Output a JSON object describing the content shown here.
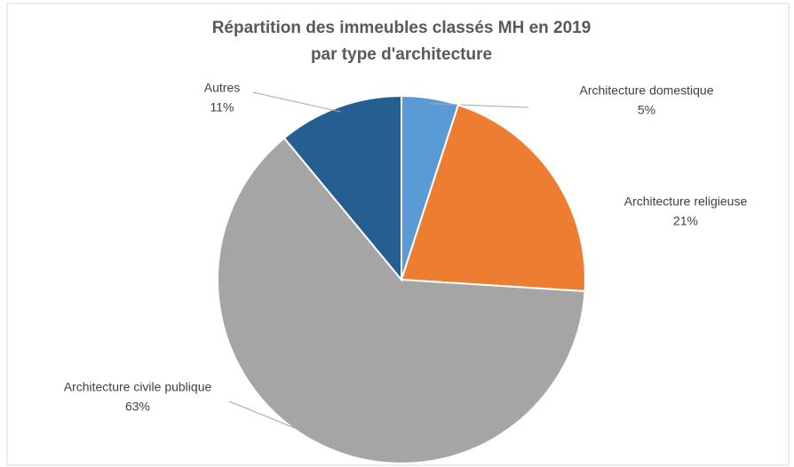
{
  "chart_data": {
    "type": "pie",
    "title": [
      "Répartition des immeubles classés MH en 2019",
      "par type d'architecture"
    ],
    "categories": [
      "Architecture domestique",
      "Architecture religieuse",
      "Architecture civile publique",
      "Autres"
    ],
    "values": [
      5,
      21,
      63,
      11
    ],
    "value_labels": [
      "5%",
      "21%",
      "63%",
      "11%"
    ],
    "colors": [
      "#5b9bd5",
      "#ed7d31",
      "#a5a5a5",
      "#255e91"
    ]
  }
}
